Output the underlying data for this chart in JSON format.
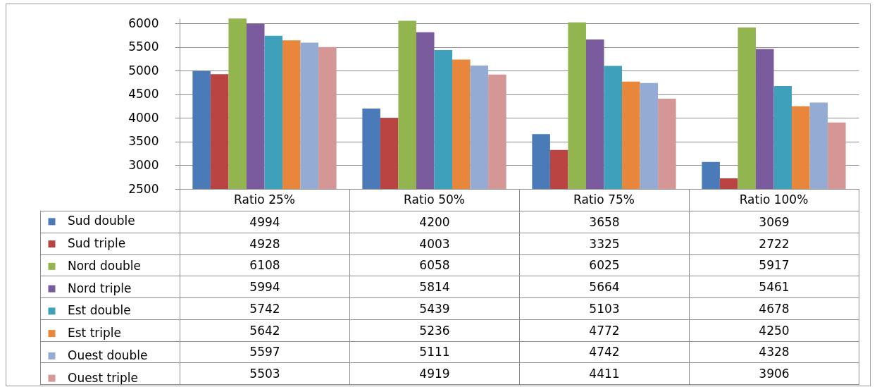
{
  "chart_data": {
    "type": "bar",
    "categories": [
      "Ratio 25%",
      "Ratio 50%",
      "Ratio 75%",
      "Ratio 100%"
    ],
    "series": [
      {
        "name": "Sud double",
        "color": "#4a7ab8",
        "values": [
          4994,
          4200,
          3658,
          3069
        ]
      },
      {
        "name": "Sud triple",
        "color": "#b94441",
        "values": [
          4928,
          4003,
          3325,
          2722
        ]
      },
      {
        "name": "Nord double",
        "color": "#93b550",
        "values": [
          6108,
          6058,
          6025,
          5917
        ]
      },
      {
        "name": "Nord triple",
        "color": "#7a5c9e",
        "values": [
          5994,
          5814,
          5664,
          5461
        ]
      },
      {
        "name": "Est double",
        "color": "#3fa0bb",
        "values": [
          5742,
          5439,
          5103,
          4678
        ]
      },
      {
        "name": "Est triple",
        "color": "#e8873c",
        "values": [
          5642,
          5236,
          4772,
          4250
        ]
      },
      {
        "name": "Ouest double",
        "color": "#94abd3",
        "values": [
          5597,
          5111,
          4742,
          4328
        ]
      },
      {
        "name": "Ouest triple",
        "color": "#d49795",
        "values": [
          5503,
          4919,
          4411,
          3906
        ]
      }
    ],
    "ylim": [
      2500,
      6110
    ],
    "yticks": [
      2500,
      3000,
      3500,
      4000,
      4500,
      5000,
      5500,
      6000
    ],
    "grid": "y",
    "legend": "bottom left",
    "data_labels": true
  }
}
